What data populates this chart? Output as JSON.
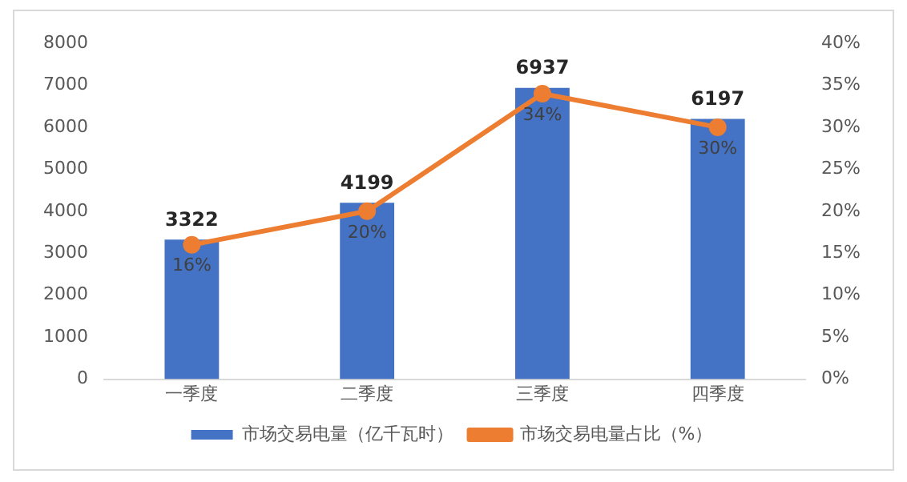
{
  "chart_data": {
    "type": "bar",
    "categories": [
      "一季度",
      "二季度",
      "三季度",
      "四季度"
    ],
    "series": [
      {
        "name": "市场交易电量（亿千瓦时）",
        "color": "#4472c4",
        "values": [
          3322,
          4199,
          6937,
          6197
        ],
        "value_labels": [
          "3322",
          "4199",
          "6937",
          "6197"
        ]
      },
      {
        "name": "市场交易电量占比（%）",
        "type": "line",
        "axis": "y2",
        "color": "#ed7d31",
        "marker": "circle",
        "values": [
          16,
          20,
          34,
          30
        ],
        "value_labels": [
          "16%",
          "20%",
          "34%",
          "30%"
        ]
      }
    ],
    "ylim": [
      0,
      8000
    ],
    "yticks": [
      0,
      1000,
      2000,
      3000,
      4000,
      5000,
      6000,
      7000,
      8000
    ],
    "y2lim": [
      0,
      40
    ],
    "y2ticks": [
      {
        "value": 0,
        "label": "0%"
      },
      {
        "value": 5,
        "label": "5%"
      },
      {
        "value": 10,
        "label": "10%"
      },
      {
        "value": 15,
        "label": "15%"
      },
      {
        "value": 20,
        "label": "20%"
      },
      {
        "value": 25,
        "label": "25%"
      },
      {
        "value": 30,
        "label": "30%"
      },
      {
        "value": 35,
        "label": "35%"
      },
      {
        "value": 40,
        "label": "40%"
      }
    ],
    "grid": false,
    "legend": "bottom"
  }
}
